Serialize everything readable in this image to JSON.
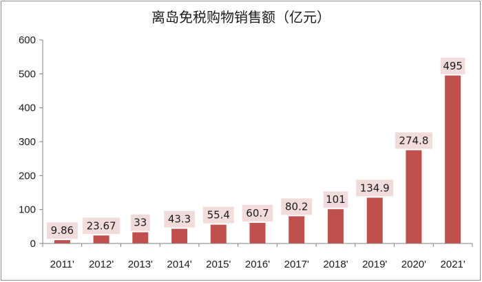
{
  "colors": {
    "bar": "#c0504d",
    "label_bg": "#f2dcdb",
    "axis": "#808080"
  },
  "chart_data": {
    "type": "bar",
    "title": "离岛免税购物销售额（亿元）",
    "xlabel": "",
    "ylabel": "",
    "ylim": [
      0,
      600
    ],
    "yticks": [
      "0",
      "100",
      "200",
      "300",
      "400",
      "500",
      "600"
    ],
    "grid": false,
    "legend": "none",
    "categories": [
      "2011'",
      "2012'",
      "2013'",
      "2014'",
      "2015'",
      "2016'",
      "2017'",
      "2018'",
      "2019'",
      "2020'",
      "2021'"
    ],
    "values": [
      9.86,
      23.67,
      33,
      43.3,
      55.4,
      60.7,
      80.2,
      101,
      134.9,
      274.8,
      495
    ],
    "data_labels": [
      "9.86",
      "23.67",
      "33",
      "43.3",
      "55.4",
      "60.7",
      "80.2",
      "101",
      "134.9",
      "274.8",
      "495"
    ]
  }
}
